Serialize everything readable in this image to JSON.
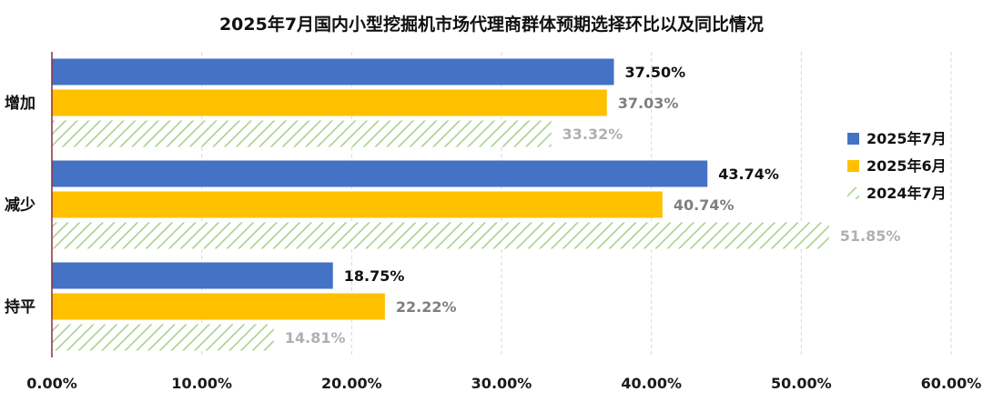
{
  "chart_data": {
    "type": "bar",
    "orientation": "horizontal",
    "title": "2025年7月国内小型挖掘机市场代理商群体预期选择环比以及同比情况",
    "xlabel": "",
    "ylabel": "",
    "categories": [
      "增加",
      "减少",
      "持平"
    ],
    "series": [
      {
        "name": "2025年7月",
        "values": [
          37.5,
          43.74,
          18.75
        ],
        "labels": [
          "37.50%",
          "43.74%",
          "18.75%"
        ],
        "color": "#4472C4",
        "pattern": "solid",
        "label_color": "#111111"
      },
      {
        "name": "2025年6月",
        "values": [
          37.03,
          40.74,
          22.22
        ],
        "labels": [
          "37.03%",
          "40.74%",
          "22.22%"
        ],
        "color": "#FFC000",
        "pattern": "solid",
        "label_color": "#7f7f7f"
      },
      {
        "name": "2024年7月",
        "values": [
          33.32,
          51.85,
          14.81
        ],
        "labels": [
          "33.32%",
          "51.85%",
          "14.81%"
        ],
        "color": "#A9D18E",
        "pattern": "hatched",
        "label_color": "#b0b0b0"
      }
    ],
    "xlim": [
      0,
      60
    ],
    "xticks": [
      0,
      10,
      20,
      30,
      40,
      50,
      60
    ],
    "xtick_labels": [
      "0.00%",
      "10.00%",
      "20.00%",
      "30.00%",
      "40.00%",
      "50.00%",
      "60.00%"
    ],
    "grid": true,
    "legend_position": "right"
  }
}
